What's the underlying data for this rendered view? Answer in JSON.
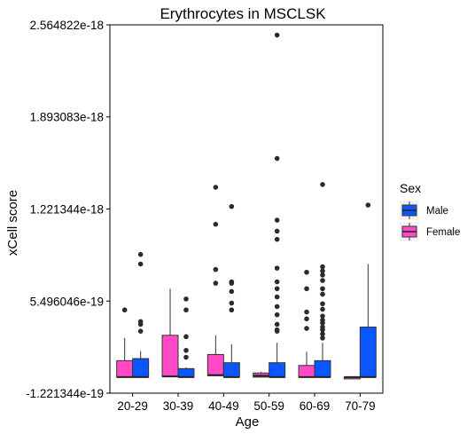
{
  "chart_data": {
    "type": "boxplot",
    "title": "Erythrocytes in MSCLSK",
    "xlabel": "Age",
    "ylabel": "xCell score",
    "ylim": [
      -1.221344e-19,
      2.564822e-18
    ],
    "y_ticks": [
      {
        "value": -1.221344e-19,
        "label": "-1.221344e-19"
      },
      {
        "value": 5.496046e-19,
        "label": "5.496046e-19"
      },
      {
        "value": 1.221344e-18,
        "label": "1.221344e-18"
      },
      {
        "value": 1.893083e-18,
        "label": "1.893083e-18"
      },
      {
        "value": 2.564822e-18,
        "label": "2.564822e-18"
      }
    ],
    "categories": [
      "20-29",
      "30-39",
      "40-49",
      "50-59",
      "60-69",
      "70-79"
    ],
    "grid": false,
    "legend": {
      "title": "Sex",
      "placement": "right"
    },
    "series": [
      {
        "name": "Male",
        "color": "#0b57ff",
        "boxes": [
          {
            "q1": -5e-21,
            "median": -5e-21,
            "q3": 1.3e-19,
            "whisker_low": -5e-21,
            "whisker_high": 1.85e-19,
            "outliers": [
              3.3e-19,
              3.8e-19,
              4e-19,
              8.2e-19,
              8.9e-19
            ]
          },
          {
            "q1": -5e-21,
            "median": -5e-21,
            "q3": 5.7e-20,
            "whisker_low": -5e-21,
            "whisker_high": 6.7e-20,
            "outliers": [
              1.4e-19,
              1.9e-19,
              2.9e-19,
              4.85e-19,
              5.65e-19
            ]
          },
          {
            "q1": -5e-21,
            "median": -5e-21,
            "q3": 1e-19,
            "whisker_low": -5e-21,
            "whisker_high": 2.35e-19,
            "outliers": [
              4.85e-19,
              5.35e-19,
              6.2e-19,
              6.8e-19,
              6.9e-19,
              1.24e-18
            ]
          },
          {
            "q1": -5e-21,
            "median": -5e-21,
            "q3": 1e-19,
            "whisker_low": -5e-21,
            "whisker_high": 2.45e-19,
            "outliers": [
              3.3e-19,
              3.4e-19,
              3.8e-19,
              4.5e-19,
              5.1e-19,
              5.8e-19,
              6.4e-19,
              6.9e-19,
              7.9e-19,
              1e-18,
              1.06e-18,
              1.14e-18,
              1.59e-18,
              2.49e-18
            ]
          },
          {
            "q1": -5e-21,
            "median": -5e-21,
            "q3": 1.15e-19,
            "whisker_low": -5e-21,
            "whisker_high": 2.45e-19,
            "outliers": [
              2.8e-19,
              3.1e-19,
              3.4e-19,
              3.6e-19,
              3.9e-19,
              4.1e-19,
              4.4e-19,
              4.9e-19,
              5.3e-19,
              6e-19,
              6.4e-19,
              7e-19,
              7.4e-19,
              7.7e-19,
              8e-19,
              1.4e-18
            ]
          },
          {
            "q1": -5e-21,
            "median": -5e-21,
            "q3": 3.6e-19,
            "whisker_low": -5e-21,
            "whisker_high": 8.2e-19,
            "outliers": [
              1.25e-18
            ]
          }
        ]
      },
      {
        "name": "Female",
        "color": "#ff49c6",
        "boxes": [
          {
            "q1": -5e-21,
            "median": -5e-21,
            "q3": 1.15e-19,
            "whisker_low": -5e-21,
            "whisker_high": 2.8e-19,
            "outliers": [
              4.85e-19
            ]
          },
          {
            "q1": 0.0,
            "median": 0.0,
            "q3": 3e-19,
            "whisker_low": 0.0,
            "whisker_high": 6.4e-19,
            "outliers": []
          },
          {
            "q1": 5e-21,
            "median": 1e-20,
            "q3": 1.6e-19,
            "whisker_low": 5e-21,
            "whisker_high": 3e-19,
            "outliers": [
              6.8e-19,
              7.8e-19,
              1.11e-18,
              1.38e-18
            ]
          },
          {
            "q1": -5e-21,
            "median": 5e-21,
            "q3": 2.5e-20,
            "whisker_low": -5e-21,
            "whisker_high": 3.5e-20,
            "outliers": []
          },
          {
            "q1": -5e-21,
            "median": -5e-21,
            "q3": 8e-20,
            "whisker_low": -5e-21,
            "whisker_high": 1.8e-19,
            "outliers": [
              3.5e-19,
              4.2e-19,
              4.7e-19,
              6.4e-19,
              7.6e-19
            ]
          },
          {
            "q1": -5e-21,
            "median": -5e-21,
            "q3": -5e-21,
            "whisker_low": -5e-21,
            "whisker_high": -5e-21,
            "outliers": []
          }
        ]
      }
    ]
  }
}
